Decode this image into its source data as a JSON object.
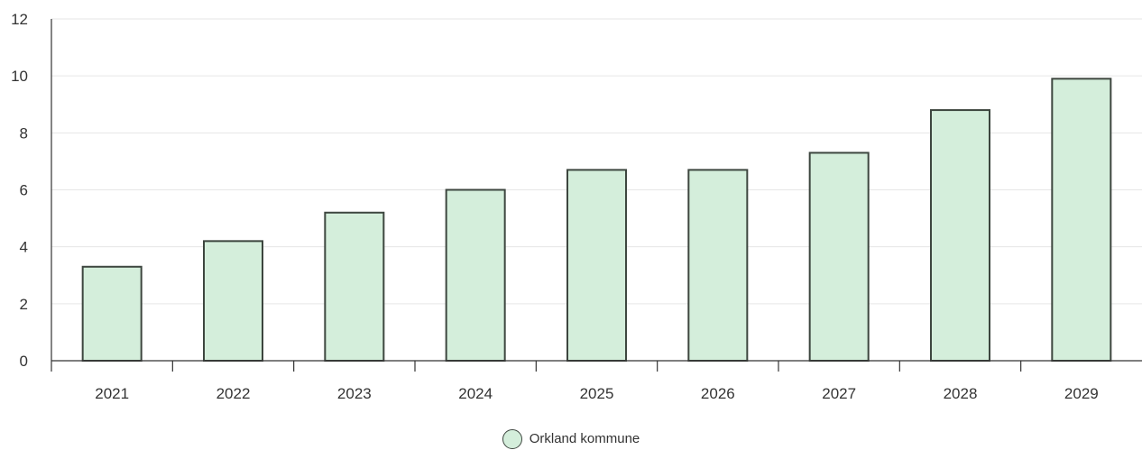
{
  "colors": {
    "bar_fill": "#d4eedb",
    "bar_stroke": "#3d463f"
  },
  "chart_data": {
    "type": "bar",
    "categories": [
      "2021",
      "2022",
      "2023",
      "2024",
      "2025",
      "2026",
      "2027",
      "2028",
      "2029"
    ],
    "series": [
      {
        "name": "Orkland kommune",
        "values": [
          3.3,
          4.2,
          5.2,
          6.0,
          6.7,
          6.7,
          7.3,
          8.8,
          9.9
        ]
      }
    ],
    "yticks": [
      "0",
      "2",
      "4",
      "6",
      "8",
      "10",
      "12"
    ],
    "ylim": [
      0,
      12
    ],
    "grid": true,
    "legend_position": "bottom-center"
  }
}
